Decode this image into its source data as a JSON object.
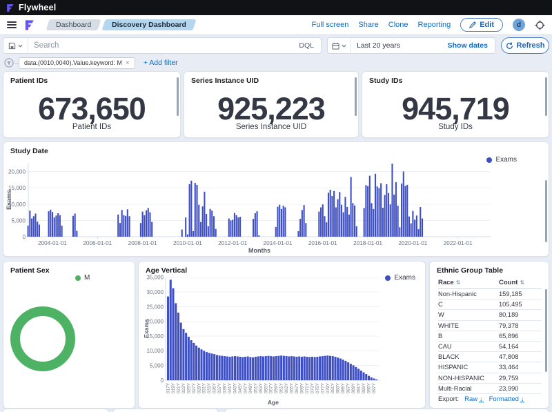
{
  "colors": {
    "accent": "#0a6cc8",
    "bar": "#3e4ec4",
    "donut_green": "#4db263",
    "axis_text": "#69707d",
    "dark_text": "#343741"
  },
  "topbar": {
    "brand": "Flywheel"
  },
  "nav": {
    "tabs": [
      {
        "label": "Dashboard",
        "active": false
      },
      {
        "label": "Discovery Dashboard",
        "active": true
      }
    ],
    "links": [
      "Full screen",
      "Share",
      "Clone",
      "Reporting"
    ],
    "edit_label": "Edit",
    "avatar_initial": "d"
  },
  "searchbar": {
    "placeholder": "Search",
    "dql": "DQL",
    "date_range": "Last 20 years",
    "show_dates": "Show dates",
    "refresh": "Refresh"
  },
  "filters": {
    "chip": "data.(0010,0040).Value.keyword: M",
    "remove": "×",
    "add": "+ Add filter"
  },
  "metrics": [
    {
      "title": "Patient IDs",
      "value": "673,650",
      "label": "Patient IDs"
    },
    {
      "title": "Series Instance UID",
      "value": "925,223",
      "label": "Series Instance UID"
    },
    {
      "title": "Study IDs",
      "value": "945,719",
      "label": "Study IDs"
    }
  ],
  "chart_data": [
    {
      "type": "bar",
      "title": "Study Date",
      "xlabel": "Months",
      "ylabel": "Exams",
      "legend": [
        "Exams"
      ],
      "ylim": [
        0,
        20000
      ],
      "y_ticks": [
        "0",
        "5,000",
        "10,000",
        "15,000",
        "20,000"
      ],
      "x_ticks": [
        "2004-01-01",
        "2006-01-01",
        "2008-01-01",
        "2010-01-01",
        "2012-01-01",
        "2014-01-01",
        "2016-01-01",
        "2018-01-01",
        "2020-01-01",
        "2022-01-01"
      ],
      "bars": [
        [
          "2002-12",
          3400
        ],
        [
          "2003-01",
          8000
        ],
        [
          "2003-02",
          5600
        ],
        [
          "2003-03",
          6300
        ],
        [
          "2003-04",
          7100
        ],
        [
          "2003-05",
          4600
        ],
        [
          "2003-06",
          3700
        ],
        [
          "2003-11",
          7800
        ],
        [
          "2003-12",
          8300
        ],
        [
          "2004-01",
          7600
        ],
        [
          "2004-02",
          5900
        ],
        [
          "2004-03",
          6500
        ],
        [
          "2004-04",
          7200
        ],
        [
          "2004-05",
          6600
        ],
        [
          "2004-06",
          3400
        ],
        [
          "2004-12",
          6400
        ],
        [
          "2005-01",
          7100
        ],
        [
          "2005-02",
          1800
        ],
        [
          "2006-12",
          6800
        ],
        [
          "2007-01",
          4200
        ],
        [
          "2007-02",
          8200
        ],
        [
          "2007-03",
          6600
        ],
        [
          "2007-04",
          6400
        ],
        [
          "2007-05",
          8400
        ],
        [
          "2007-06",
          6300
        ],
        [
          "2007-12",
          4200
        ],
        [
          "2008-01",
          7700
        ],
        [
          "2008-02",
          6600
        ],
        [
          "2008-03",
          8100
        ],
        [
          "2008-04",
          8800
        ],
        [
          "2008-05",
          7500
        ],
        [
          "2008-06",
          4500
        ],
        [
          "2009-10",
          2200
        ],
        [
          "2009-12",
          5900
        ],
        [
          "2010-01",
          700
        ],
        [
          "2010-02",
          16100
        ],
        [
          "2010-03",
          17200
        ],
        [
          "2010-04",
          1700
        ],
        [
          "2010-05",
          16500
        ],
        [
          "2010-06",
          15900
        ],
        [
          "2010-07",
          9800
        ],
        [
          "2010-08",
          4500
        ],
        [
          "2010-09",
          9300
        ],
        [
          "2010-10",
          13800
        ],
        [
          "2010-11",
          7000
        ],
        [
          "2010-12",
          3200
        ],
        [
          "2011-01",
          8500
        ],
        [
          "2011-02",
          8000
        ],
        [
          "2011-03",
          6300
        ],
        [
          "2011-04",
          2400
        ],
        [
          "2011-11",
          5600
        ],
        [
          "2011-12",
          5000
        ],
        [
          "2012-01",
          5200
        ],
        [
          "2012-02",
          7300
        ],
        [
          "2012-03",
          6600
        ],
        [
          "2012-04",
          5900
        ],
        [
          "2012-05",
          6100
        ],
        [
          "2012-12",
          5500
        ],
        [
          "2013-01",
          7200
        ],
        [
          "2013-02",
          7800
        ],
        [
          "2013-03",
          400
        ],
        [
          "2013-12",
          3000
        ],
        [
          "2014-01",
          9200
        ],
        [
          "2014-02",
          9800
        ],
        [
          "2014-03",
          8500
        ],
        [
          "2014-04",
          9500
        ],
        [
          "2014-05",
          9000
        ],
        [
          "2014-12",
          1700
        ],
        [
          "2015-01",
          5500
        ],
        [
          "2015-02",
          8200
        ],
        [
          "2015-03",
          9700
        ],
        [
          "2015-04",
          4200
        ],
        [
          "2015-11",
          7700
        ],
        [
          "2015-12",
          9000
        ],
        [
          "2016-01",
          9900
        ],
        [
          "2016-02",
          6300
        ],
        [
          "2016-03",
          4400
        ],
        [
          "2016-04",
          13500
        ],
        [
          "2016-05",
          14400
        ],
        [
          "2016-06",
          12500
        ],
        [
          "2016-07",
          14000
        ],
        [
          "2016-08",
          9000
        ],
        [
          "2016-09",
          11500
        ],
        [
          "2016-10",
          13700
        ],
        [
          "2016-11",
          9800
        ],
        [
          "2016-12",
          7500
        ],
        [
          "2017-01",
          12200
        ],
        [
          "2017-02",
          9100
        ],
        [
          "2017-03",
          6800
        ],
        [
          "2017-04",
          18300
        ],
        [
          "2017-05",
          10300
        ],
        [
          "2017-06",
          9600
        ],
        [
          "2017-07",
          3200
        ],
        [
          "2017-11",
          8800
        ],
        [
          "2017-12",
          15800
        ],
        [
          "2018-01",
          15500
        ],
        [
          "2018-02",
          18700
        ],
        [
          "2018-03",
          10300
        ],
        [
          "2018-04",
          8500
        ],
        [
          "2018-05",
          19300
        ],
        [
          "2018-06",
          15400
        ],
        [
          "2018-07",
          14900
        ],
        [
          "2018-08",
          16400
        ],
        [
          "2018-09",
          8900
        ],
        [
          "2018-10",
          12800
        ],
        [
          "2018-11",
          16100
        ],
        [
          "2018-12",
          13400
        ],
        [
          "2019-01",
          9900
        ],
        [
          "2019-02",
          22400
        ],
        [
          "2019-03",
          12900
        ],
        [
          "2019-04",
          16700
        ],
        [
          "2019-05",
          9500
        ],
        [
          "2019-06",
          2900
        ],
        [
          "2019-07",
          16300
        ],
        [
          "2019-08",
          20000
        ],
        [
          "2019-09",
          15600
        ],
        [
          "2019-10",
          15900
        ],
        [
          "2019-11",
          6200
        ],
        [
          "2019-12",
          4100
        ],
        [
          "2020-01",
          7900
        ],
        [
          "2020-02",
          5200
        ],
        [
          "2020-03",
          6500
        ],
        [
          "2020-04",
          2300
        ],
        [
          "2020-05",
          9100
        ],
        [
          "2020-06",
          5600
        ]
      ]
    },
    {
      "type": "pie",
      "title": "Patient Sex",
      "legend": [
        "M"
      ],
      "slices": [
        {
          "label": "M",
          "fraction": 1
        }
      ]
    },
    {
      "type": "bar",
      "title": "Age Vertical",
      "xlabel": "Age",
      "ylabel": "Exams",
      "legend": [
        "Exams"
      ],
      "ylim": [
        0,
        35000
      ],
      "y_ticks": [
        "0",
        "5,000",
        "10,000",
        "15,000",
        "20,000",
        "25,000",
        "30,000",
        "35,000"
      ],
      "tick_every": 2,
      "categories": [
        "017Y",
        "018Y",
        "019Y",
        "020Y",
        "021Y",
        "022Y",
        "023Y",
        "024Y",
        "025Y",
        "026Y",
        "027Y",
        "028Y",
        "029Y",
        "030Y",
        "031Y",
        "032Y",
        "033Y",
        "034Y",
        "035Y",
        "036Y",
        "037Y",
        "038Y",
        "039Y",
        "040Y",
        "041Y",
        "042Y",
        "043Y",
        "044Y",
        "045Y",
        "046Y",
        "047Y",
        "048Y",
        "049Y",
        "050Y",
        "051Y",
        "052Y",
        "053Y",
        "054Y",
        "055Y",
        "056Y",
        "057Y",
        "058Y",
        "059Y",
        "060Y",
        "061Y",
        "062Y",
        "063Y",
        "064Y",
        "065Y",
        "066Y",
        "067Y",
        "068Y",
        "069Y",
        "070Y",
        "071Y",
        "072Y",
        "073Y",
        "074Y",
        "075Y",
        "076Y",
        "077Y",
        "078Y",
        "079Y",
        "080Y",
        "081Y",
        "082Y",
        "083Y",
        "084Y",
        "085Y",
        "086Y",
        "087Y",
        "088Y",
        "089Y",
        "090Y",
        "091Y",
        "092Y",
        "093Y",
        "094Y",
        "095Y",
        "096Y",
        "097Y",
        "098Y"
      ],
      "values": [
        28500,
        34200,
        31300,
        26200,
        23000,
        19600,
        17400,
        16100,
        14800,
        13600,
        12700,
        11800,
        11100,
        10500,
        10000,
        9600,
        9300,
        9100,
        8900,
        8600,
        8400,
        8300,
        8200,
        8100,
        8000,
        8100,
        8200,
        8100,
        8000,
        7900,
        8000,
        8100,
        7900,
        7800,
        8000,
        8100,
        8200,
        8100,
        8200,
        8300,
        8200,
        8100,
        8200,
        8300,
        8400,
        8300,
        8200,
        8100,
        8200,
        8100,
        8000,
        8100,
        8000,
        8100,
        8000,
        7900,
        8000,
        7900,
        8000,
        8100,
        8200,
        8300,
        8400,
        8300,
        8200,
        8000,
        7700,
        7400,
        7000,
        6600,
        6100,
        5600,
        5100,
        4500,
        3900,
        3300,
        2700,
        2100,
        1500,
        1000,
        600,
        300
      ]
    },
    {
      "type": "table",
      "title": "Ethnic Group Table",
      "columns": [
        "Race",
        "Count"
      ],
      "rows": [
        [
          "Non-Hispanic",
          "159,185"
        ],
        [
          "C",
          "105,495"
        ],
        [
          "W",
          "80,189"
        ],
        [
          "WHITE",
          "79,378"
        ],
        [
          "B",
          "65,896"
        ],
        [
          "CAU",
          "54,164"
        ],
        [
          "BLACK",
          "47,808"
        ],
        [
          "HISPANIC",
          "33,464"
        ],
        [
          "NON-HISPANIC",
          "29,759"
        ],
        [
          "Multi-Racial",
          "23,990"
        ]
      ],
      "export": {
        "label": "Export:",
        "raw": "Raw",
        "formatted": "Formatted"
      }
    }
  ]
}
